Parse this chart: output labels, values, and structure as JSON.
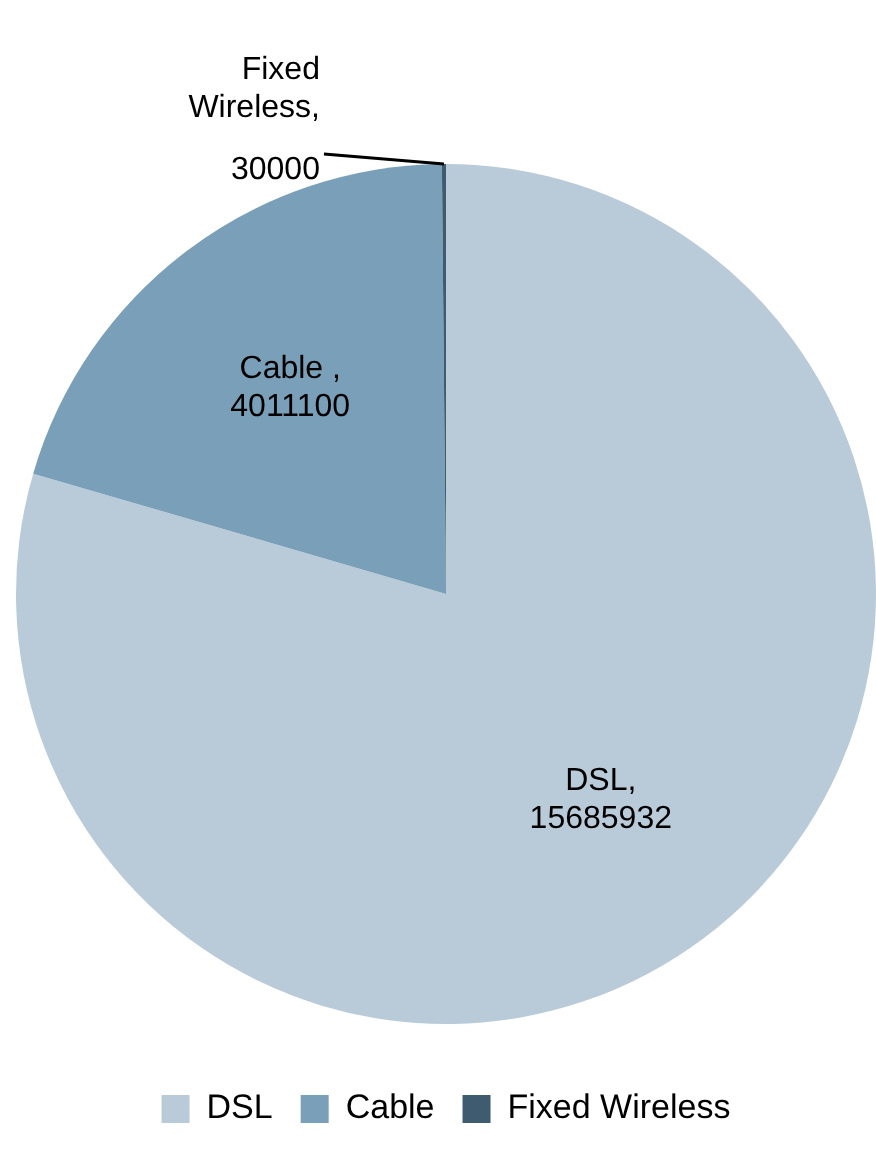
{
  "chart_data": {
    "type": "pie",
    "categories": [
      "DSL",
      "Cable",
      "Fixed Wireless"
    ],
    "values": [
      15685932,
      4011100,
      30000
    ],
    "colors": [
      "#b9cbd9",
      "#7a9fb8",
      "#3e5b70"
    ],
    "value_labels": [
      "DSL, 15685932",
      "Cable , 4011100",
      "Fixed Wireless, 30000"
    ],
    "legend": "bottom"
  }
}
